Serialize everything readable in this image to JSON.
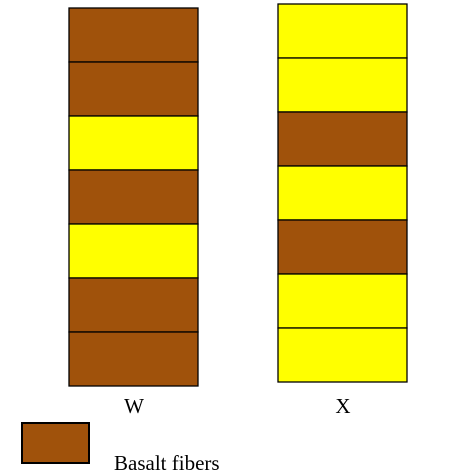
{
  "colors": {
    "basalt": "#a0520b",
    "other": "#ffff00",
    "border": "#000000"
  },
  "stacks": [
    {
      "label": "W",
      "layers": [
        "basalt",
        "basalt",
        "other",
        "basalt",
        "other",
        "basalt",
        "basalt"
      ]
    },
    {
      "label": "X",
      "layers": [
        "other",
        "other",
        "basalt",
        "other",
        "basalt",
        "other",
        "other"
      ]
    }
  ],
  "legend": {
    "swatch": "basalt",
    "label": "Basalt fibers"
  }
}
